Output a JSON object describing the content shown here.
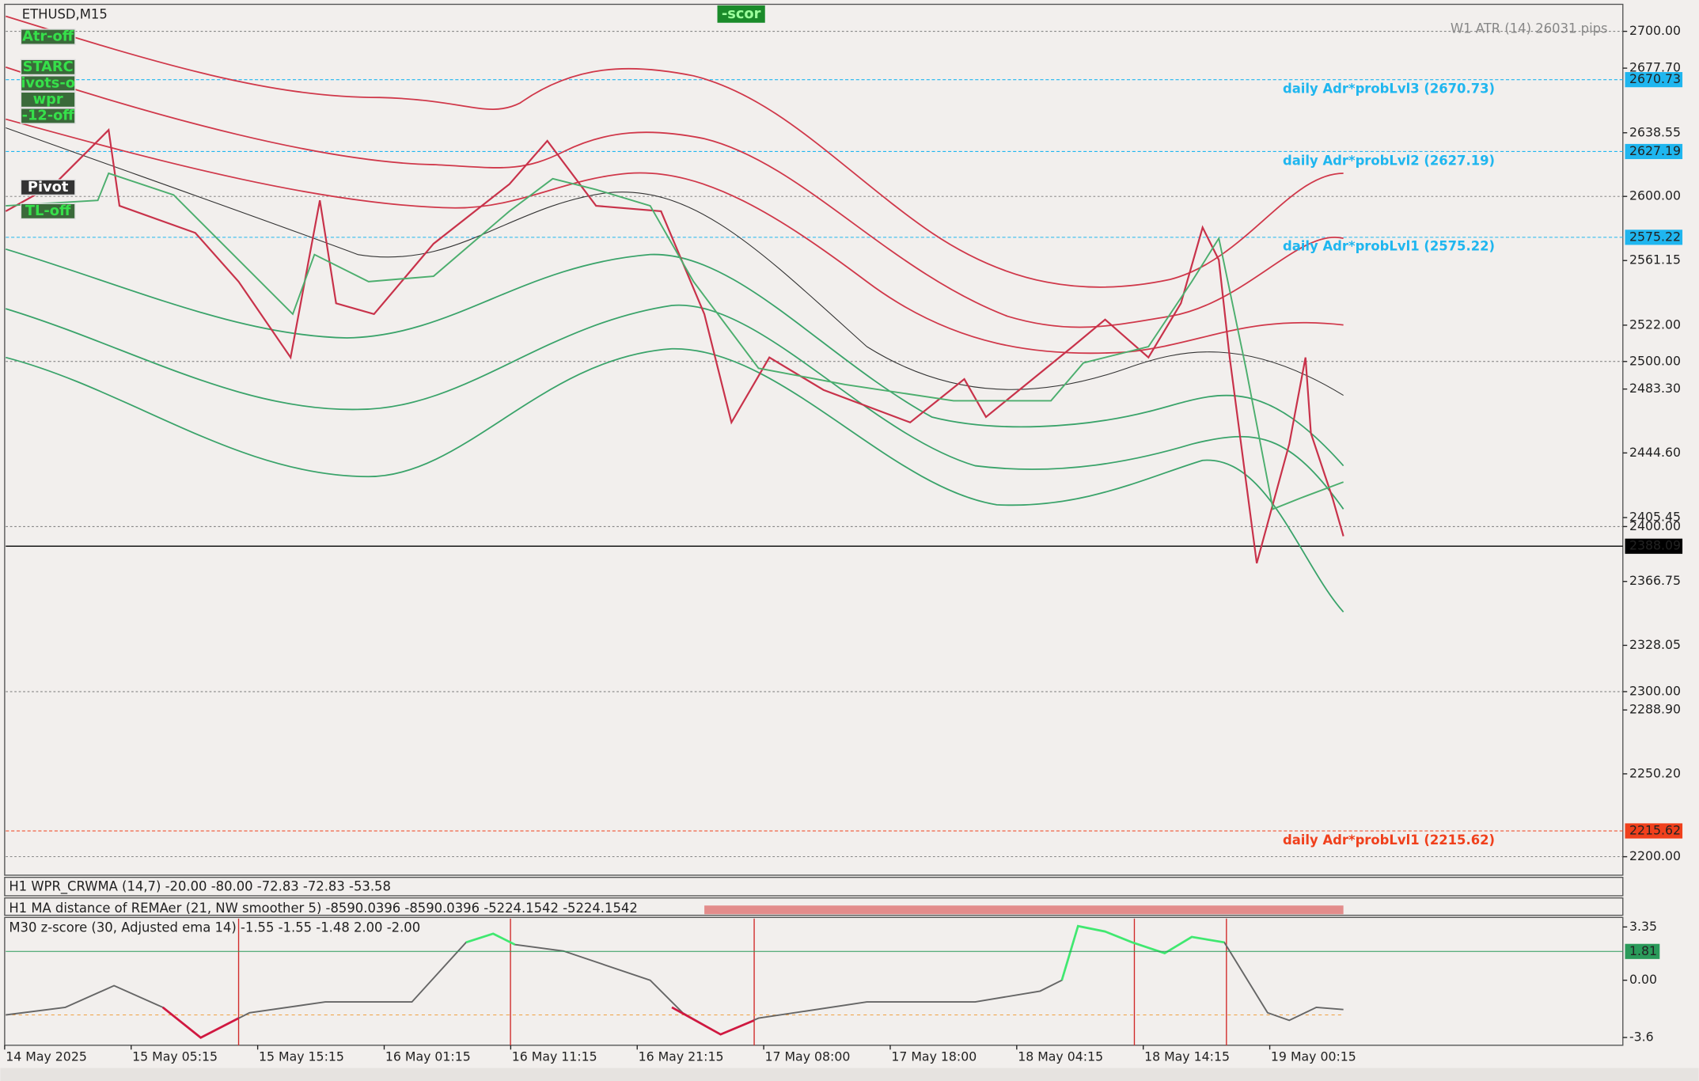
{
  "symbol": "ETHUSD,M15",
  "buttons": [
    "Atr-off",
    "STARC",
    "ivots-o",
    "wpr",
    "-12-off",
    "Pivot",
    "TL-off"
  ],
  "score_button": "-scor",
  "atr_label": "W1 ATR (14) 26031 pips",
  "price_axis": {
    "ylim": [
      2188.8,
      2715.7
    ],
    "ticks": [
      {
        "value": 2700,
        "label": "2700.00"
      },
      {
        "value": 2677.7,
        "label": "2677.70"
      },
      {
        "value": 2638.55,
        "label": "2638.55"
      },
      {
        "value": 2600,
        "label": "2600.00"
      },
      {
        "value": 2561.15,
        "label": "2561.15"
      },
      {
        "value": 2522,
        "label": "2522.00"
      },
      {
        "value": 2500,
        "label": "2500.00"
      },
      {
        "value": 2483.3,
        "label": "2483.30"
      },
      {
        "value": 2444.6,
        "label": "2444.60"
      },
      {
        "value": 2405.45,
        "label": "2405.45"
      },
      {
        "value": 2400,
        "label": "2400.00"
      },
      {
        "value": 2366.75,
        "label": "2366.75"
      },
      {
        "value": 2328.05,
        "label": "2328.05"
      },
      {
        "value": 2300,
        "label": "2300.00"
      },
      {
        "value": 2288.9,
        "label": "2288.90"
      },
      {
        "value": 2250.2,
        "label": "2250.20"
      },
      {
        "value": 2200,
        "label": "2200.00"
      }
    ],
    "round_levels": [
      2700,
      2600,
      2500,
      2400,
      2300,
      2200
    ],
    "highlights": [
      {
        "value": 2670.73,
        "label": "2670.73",
        "color": "#1fb6ef"
      },
      {
        "value": 2627.19,
        "label": "2627.19",
        "color": "#1fb6ef"
      },
      {
        "value": 2575.22,
        "label": "2575.22",
        "color": "#1fb6ef"
      },
      {
        "value": 2388.09,
        "label": "2388.09",
        "color": "#000000"
      },
      {
        "value": 2215.62,
        "label": "2215.62",
        "color": "#f0401c"
      }
    ]
  },
  "level_labels": [
    {
      "text": "daily Adr*probLvl3 (2670.73)",
      "value": 2670.73,
      "color": "#1fb6ef"
    },
    {
      "text": "daily Adr*probLvl2 (2627.19)",
      "value": 2627.19,
      "color": "#1fb6ef"
    },
    {
      "text": "daily Adr*probLvl1 (2575.22)",
      "value": 2575.22,
      "color": "#1fb6ef"
    },
    {
      "text": "daily Adr*probLvl1 (2215.62)",
      "value": 2215.62,
      "color": "#f0401c"
    }
  ],
  "indicators": [
    "H1 WPR_CRWMA (14,7) -20.00 -80.00 -72.83 -72.83 -53.58",
    "H1 MA distance of REMAer (21, NW smoother 5) -8590.0396 -8590.0396 -5224.1542 -5224.1542",
    "M30 z-score (30, Adjusted ema 14) -1.55 -1.55 -1.48 2.00 -2.00"
  ],
  "zscore_axis": {
    "ylim": [
      -4.09,
      3.88
    ],
    "ticks": [
      {
        "value": 3.35,
        "label": "3.35"
      },
      {
        "value": 0,
        "label": "0.00"
      },
      {
        "value": -3.6,
        "label": "-3.6"
      }
    ],
    "highlight": {
      "value": 1.81,
      "label": "1.81"
    }
  },
  "time_labels": [
    "14 May 2025",
    "15 May 05:15",
    "15 May 15:15",
    "16 May 01:15",
    "16 May 11:15",
    "16 May 21:15",
    "17 May 08:00",
    "17 May 18:00",
    "18 May 04:15",
    "18 May 14:15",
    "19 May 00:15"
  ]
}
